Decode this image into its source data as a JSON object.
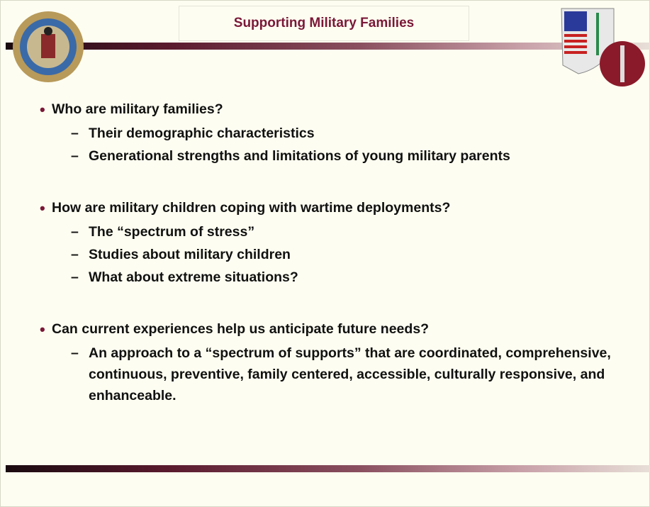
{
  "title": "Supporting Military Families",
  "bullets": [
    {
      "text": "Who are military families?",
      "subitems": [
        "Their demographic characteristics",
        "Generational strengths and limitations of young military parents"
      ]
    },
    {
      "text": "How are military children coping with wartime deployments?",
      "subitems": [
        "The “spectrum of stress”",
        "Studies about military children",
        "What about extreme situations?"
      ]
    },
    {
      "text": "Can current experiences help us anticipate future needs?",
      "subitems": [
        "An approach to a “spectrum of supports” that are coordinated, comprehensive, continuous, preventive, family centered, accessible, culturally responsive, and enhanceable."
      ]
    }
  ]
}
